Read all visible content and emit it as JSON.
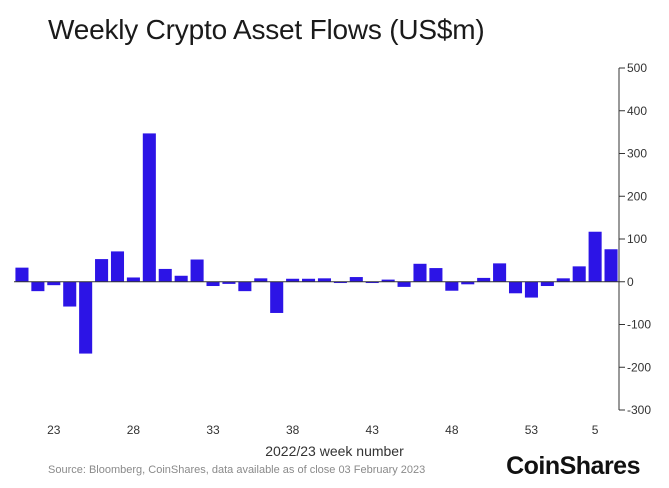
{
  "chart_data": {
    "type": "bar",
    "title": "Weekly Crypto Asset Flows (US$m)",
    "xlabel": "2022/23 week number",
    "ylabel": "",
    "ylim": [
      -300,
      500
    ],
    "y_ticks": [
      500,
      400,
      300,
      200,
      100,
      0,
      -100,
      -200,
      -300
    ],
    "x_ticks": [
      {
        "label": "23",
        "index": 2
      },
      {
        "label": "28",
        "index": 7
      },
      {
        "label": "33",
        "index": 12
      },
      {
        "label": "38",
        "index": 17
      },
      {
        "label": "43",
        "index": 22
      },
      {
        "label": "48",
        "index": 27
      },
      {
        "label": "53",
        "index": 32
      },
      {
        "label": "5",
        "index": 36
      }
    ],
    "categories": [
      "21",
      "22",
      "23",
      "24",
      "25",
      "26",
      "27",
      "28",
      "29",
      "30",
      "31",
      "32",
      "33",
      "34",
      "35",
      "36",
      "37",
      "38",
      "39",
      "40",
      "41",
      "42",
      "43",
      "44",
      "45",
      "46",
      "47",
      "48",
      "49",
      "50",
      "51",
      "52",
      "53",
      "1",
      "2",
      "3",
      "4",
      "5"
    ],
    "values": [
      33,
      -22,
      -8,
      -58,
      -168,
      53,
      71,
      10,
      347,
      30,
      14,
      52,
      -10,
      -5,
      -22,
      8,
      -73,
      7,
      7,
      8,
      -3,
      11,
      -3,
      5,
      -12,
      42,
      32,
      -21,
      -6,
      9,
      43,
      -27,
      -37,
      -10,
      8,
      36,
      117,
      76
    ],
    "bar_color": "#2c14e6",
    "grid": false,
    "legend": "none"
  },
  "footer": {
    "source": "Source: Bloomberg, CoinShares, data available as of close 03 February 2023",
    "brand": "CoinShares"
  }
}
